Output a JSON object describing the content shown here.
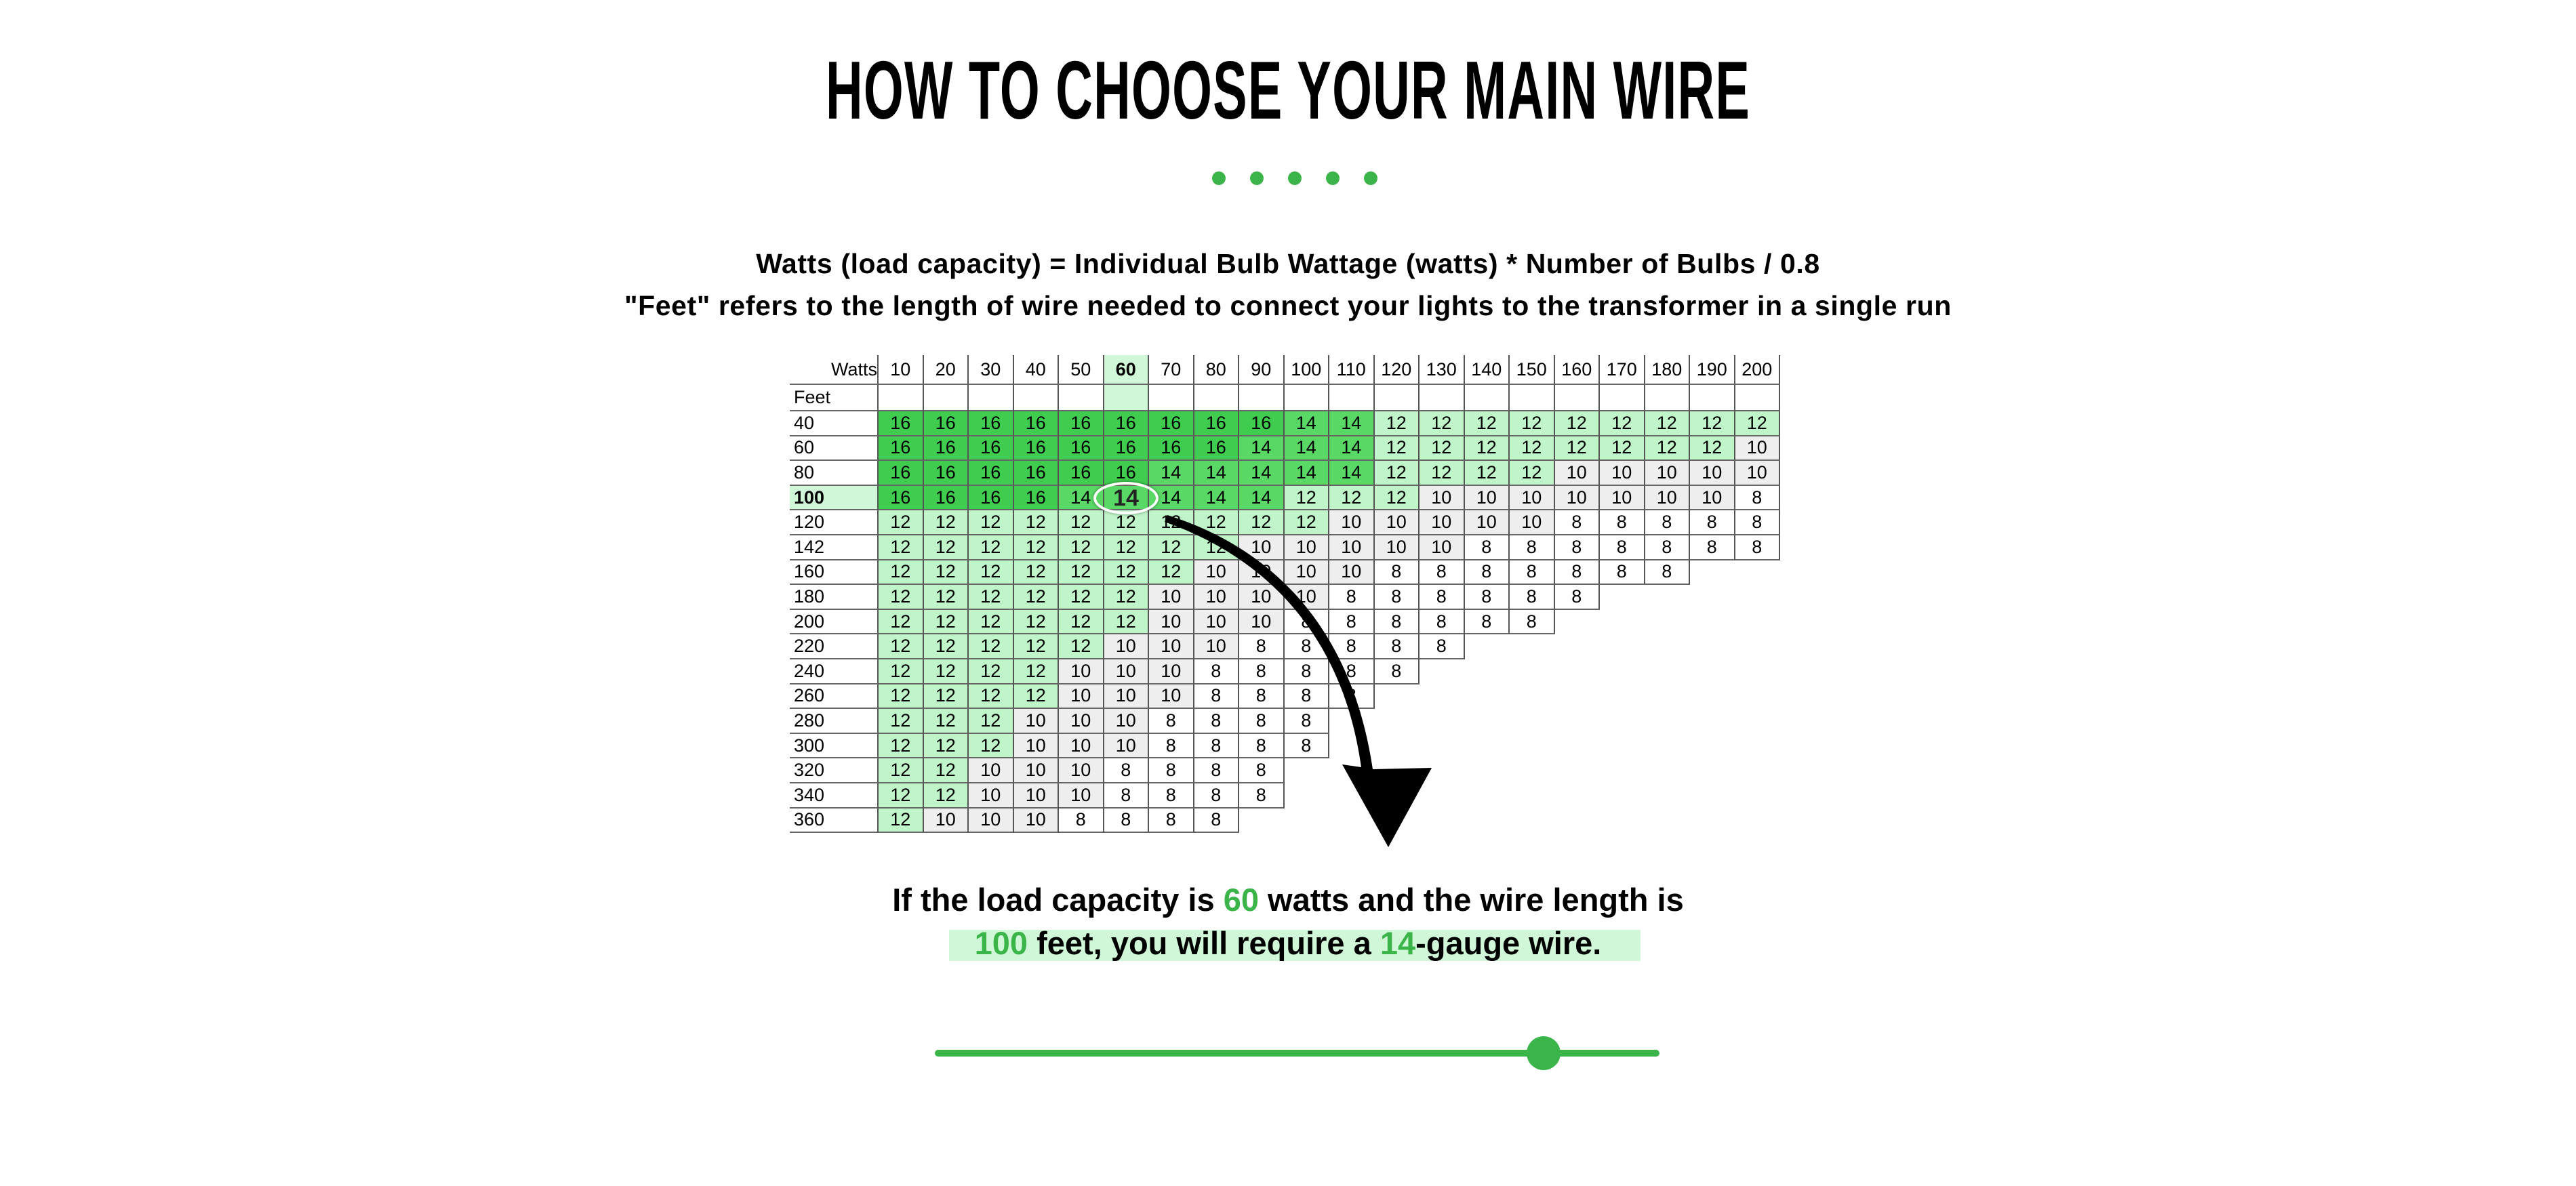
{
  "title": "HOW TO CHOOSE YOUR MAIN WIRE",
  "formula_line1": "Watts (load capacity) = Individual Bulb Wattage (watts) * Number of Bulbs / 0.8",
  "formula_line2": "\"Feet\" refers to the length of wire needed to connect your lights to the transformer in a single run",
  "colors": {
    "accent": "#3bb54a",
    "gauge16": "#3fcc4f",
    "gauge14": "#5ad866",
    "gauge12": "#bff5c8",
    "gauge10": "#eeeeee",
    "gauge8": "#ffffff",
    "highlight": "#d0f8d8"
  },
  "table": {
    "watts_label": "Watts",
    "feet_label": "Feet",
    "watts": [
      "10",
      "20",
      "30",
      "40",
      "50",
      "60",
      "70",
      "80",
      "90",
      "100",
      "110",
      "120",
      "130",
      "140",
      "150",
      "160",
      "170",
      "180",
      "190",
      "200"
    ],
    "highlight_watts": "60",
    "highlight_feet": "100",
    "rows": [
      {
        "feet": "40",
        "gauges": [
          "16",
          "16",
          "16",
          "16",
          "16",
          "16",
          "16",
          "16",
          "16",
          "14",
          "14",
          "12",
          "12",
          "12",
          "12",
          "12",
          "12",
          "12",
          "12",
          "12"
        ]
      },
      {
        "feet": "60",
        "gauges": [
          "16",
          "16",
          "16",
          "16",
          "16",
          "16",
          "16",
          "16",
          "14",
          "14",
          "14",
          "12",
          "12",
          "12",
          "12",
          "12",
          "12",
          "12",
          "12",
          "10"
        ]
      },
      {
        "feet": "80",
        "gauges": [
          "16",
          "16",
          "16",
          "16",
          "16",
          "16",
          "14",
          "14",
          "14",
          "14",
          "14",
          "12",
          "12",
          "12",
          "12",
          "10",
          "10",
          "10",
          "10",
          "10"
        ]
      },
      {
        "feet": "100",
        "gauges": [
          "16",
          "16",
          "16",
          "16",
          "14",
          "14",
          "14",
          "14",
          "14",
          "12",
          "12",
          "12",
          "10",
          "10",
          "10",
          "10",
          "10",
          "10",
          "10",
          "8"
        ]
      },
      {
        "feet": "120",
        "gauges": [
          "12",
          "12",
          "12",
          "12",
          "12",
          "12",
          "12",
          "12",
          "12",
          "12",
          "10",
          "10",
          "10",
          "10",
          "10",
          "8",
          "8",
          "8",
          "8",
          "8"
        ]
      },
      {
        "feet": "142",
        "gauges": [
          "12",
          "12",
          "12",
          "12",
          "12",
          "12",
          "12",
          "12",
          "10",
          "10",
          "10",
          "10",
          "10",
          "8",
          "8",
          "8",
          "8",
          "8",
          "8",
          "8"
        ]
      },
      {
        "feet": "160",
        "gauges": [
          "12",
          "12",
          "12",
          "12",
          "12",
          "12",
          "12",
          "10",
          "10",
          "10",
          "10",
          "8",
          "8",
          "8",
          "8",
          "8",
          "8",
          "8"
        ]
      },
      {
        "feet": "180",
        "gauges": [
          "12",
          "12",
          "12",
          "12",
          "12",
          "12",
          "10",
          "10",
          "10",
          "10",
          "8",
          "8",
          "8",
          "8",
          "8",
          "8"
        ]
      },
      {
        "feet": "200",
        "gauges": [
          "12",
          "12",
          "12",
          "12",
          "12",
          "12",
          "10",
          "10",
          "10",
          "8",
          "8",
          "8",
          "8",
          "8",
          "8"
        ]
      },
      {
        "feet": "220",
        "gauges": [
          "12",
          "12",
          "12",
          "12",
          "12",
          "10",
          "10",
          "10",
          "8",
          "8",
          "8",
          "8",
          "8"
        ]
      },
      {
        "feet": "240",
        "gauges": [
          "12",
          "12",
          "12",
          "12",
          "10",
          "10",
          "10",
          "8",
          "8",
          "8",
          "8",
          "8"
        ]
      },
      {
        "feet": "260",
        "gauges": [
          "12",
          "12",
          "12",
          "12",
          "10",
          "10",
          "10",
          "8",
          "8",
          "8",
          "8"
        ]
      },
      {
        "feet": "280",
        "gauges": [
          "12",
          "12",
          "12",
          "10",
          "10",
          "10",
          "8",
          "8",
          "8",
          "8"
        ]
      },
      {
        "feet": "300",
        "gauges": [
          "12",
          "12",
          "12",
          "10",
          "10",
          "10",
          "8",
          "8",
          "8",
          "8"
        ]
      },
      {
        "feet": "320",
        "gauges": [
          "12",
          "12",
          "10",
          "10",
          "10",
          "8",
          "8",
          "8",
          "8"
        ]
      },
      {
        "feet": "340",
        "gauges": [
          "12",
          "12",
          "10",
          "10",
          "10",
          "8",
          "8",
          "8",
          "8"
        ]
      },
      {
        "feet": "360",
        "gauges": [
          "12",
          "10",
          "10",
          "10",
          "8",
          "8",
          "8",
          "8"
        ]
      }
    ]
  },
  "magnifier_value": "14",
  "result": {
    "p1": "If the load capacity is ",
    "watts": "60",
    "p2": " watts and the wire length is",
    "feet": "100",
    "p3": " feet, you will require a ",
    "gauge": "14",
    "p4": "-gauge wire."
  },
  "slider": {
    "value_fraction": 0.84
  }
}
